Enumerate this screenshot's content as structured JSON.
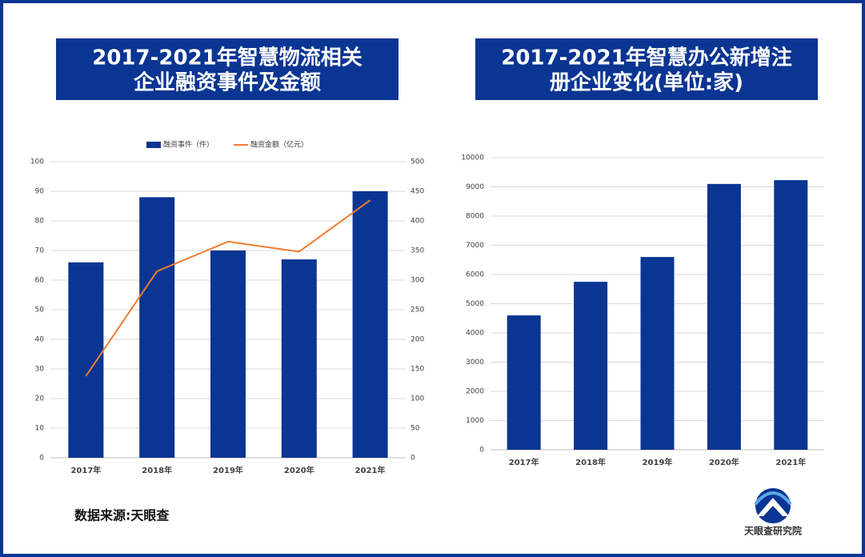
{
  "chart_data": [
    {
      "type": "combo",
      "title": [
        "2017-2021年智慧物流相关",
        "企业融资事件及金额"
      ],
      "categories": [
        "2017年",
        "2018年",
        "2019年",
        "2020年",
        "2021年"
      ],
      "series": [
        {
          "name": "融资事件（件）",
          "type": "bar",
          "color": "#0a3592",
          "values": [
            66,
            88,
            70,
            67,
            90
          ]
        },
        {
          "name": "融资金额（亿元）",
          "type": "line",
          "axis": "y2",
          "color": "#ed7d31",
          "values": [
            138,
            315,
            365,
            348,
            435
          ]
        }
      ],
      "ylim": [
        0,
        100
      ],
      "yticks": [
        0,
        10,
        20,
        30,
        40,
        50,
        60,
        70,
        80,
        90,
        100
      ],
      "y2lim": [
        0,
        500
      ],
      "y2ticks": [
        0,
        50,
        100,
        150,
        200,
        250,
        300,
        350,
        400,
        450,
        500
      ],
      "grid": true,
      "legend": "top"
    },
    {
      "type": "bar",
      "title": [
        "2017-2021年智慧办公新增注",
        "册企业变化(单位:家)"
      ],
      "categories": [
        "2017年",
        "2018年",
        "2019年",
        "2020年",
        "2021年"
      ],
      "values": [
        4600,
        5750,
        6600,
        9100,
        9230
      ],
      "color": "#0a3592",
      "ylim": [
        0,
        10000
      ],
      "yticks": [
        0,
        1000,
        2000,
        3000,
        4000,
        5000,
        6000,
        7000,
        8000,
        9000,
        10000
      ],
      "grid": true
    }
  ],
  "footer": {
    "source": "数据来源:天眼查",
    "brand": "天眼查研究院"
  }
}
